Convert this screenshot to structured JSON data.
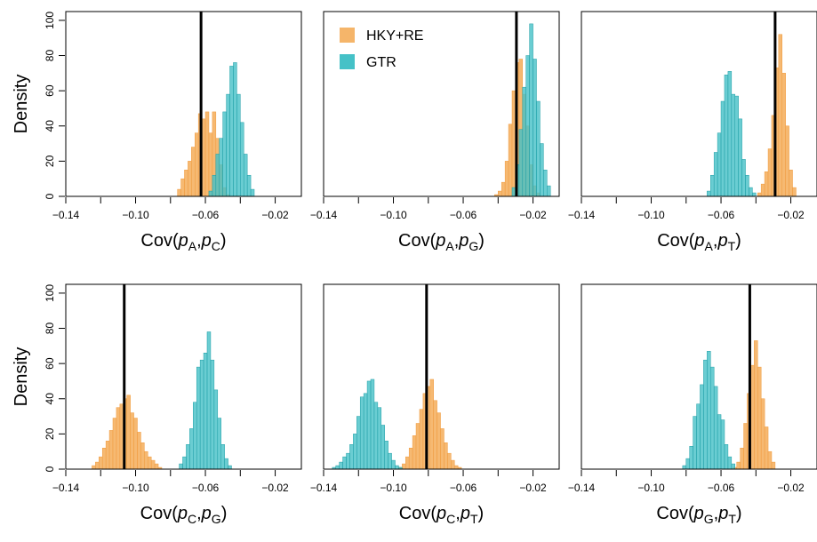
{
  "colors": {
    "hky": "#f5b56a",
    "hky_edge": "#f09a3c",
    "gtr": "#45c1c7",
    "gtr_edge": "#1f9ea6",
    "overlap": "#6f9a7c",
    "truth_line": "#000000",
    "frame": "#000000"
  },
  "legend": {
    "placement": "top-left of top-middle panel",
    "items": [
      {
        "label": "HKY+RE",
        "color_key": "hky"
      },
      {
        "label": "GTR",
        "color_key": "gtr"
      }
    ]
  },
  "shared": {
    "ylabel": "Density",
    "xlim": [
      -0.14,
      -0.005
    ],
    "ylim": [
      0,
      105
    ],
    "x_ticks": [
      "-0.14",
      "-0.10",
      "-0.06",
      "-0.02"
    ],
    "x_tick_values": [
      -0.14,
      -0.1,
      -0.06,
      -0.02
    ],
    "x_minor_tick_values": [
      -0.12,
      -0.08,
      -0.04
    ],
    "y_ticks": [
      "0",
      "20",
      "40",
      "60",
      "80",
      "100"
    ],
    "y_tick_values": [
      0,
      20,
      40,
      60,
      80,
      100
    ]
  },
  "chart_data": [
    {
      "type": "histogram",
      "xlabel": {
        "base": "Cov(",
        "v1": "p",
        "s1": "A",
        "v2": "p",
        "s2": "C"
      },
      "true_value": -0.0625,
      "bin_width": 0.002,
      "series": [
        {
          "name": "HKY+RE",
          "start": -0.076,
          "heights": [
            4,
            10,
            15,
            20,
            28,
            36,
            47,
            44,
            48,
            36,
            48,
            33,
            18,
            5,
            1
          ]
        },
        {
          "name": "GTR",
          "start": -0.058,
          "heights": [
            3,
            12,
            24,
            33,
            48,
            58,
            74,
            76,
            58,
            42,
            24,
            12,
            4
          ]
        }
      ]
    },
    {
      "type": "histogram",
      "xlabel": {
        "base": "Cov(",
        "v1": "p",
        "s1": "A",
        "v2": "p",
        "s2": "G"
      },
      "true_value": -0.0295,
      "bin_width": 0.002,
      "series": [
        {
          "name": "HKY+RE",
          "start": -0.042,
          "heights": [
            1,
            3,
            8,
            20,
            41,
            60,
            76,
            78,
            58,
            40,
            18,
            6,
            2
          ]
        },
        {
          "name": "GTR",
          "start": -0.032,
          "heights": [
            5,
            18,
            38,
            62,
            80,
            98,
            78,
            54,
            30,
            15,
            6
          ]
        }
      ]
    },
    {
      "type": "histogram",
      "xlabel": {
        "base": "Cov(",
        "v1": "p",
        "s1": "A",
        "v2": "p",
        "s2": "T"
      },
      "true_value": -0.029,
      "bin_width": 0.002,
      "series": [
        {
          "name": "HKY+RE",
          "start": -0.039,
          "heights": [
            2,
            7,
            14,
            27,
            46,
            73,
            92,
            70,
            40,
            15,
            5
          ]
        },
        {
          "name": "GTR",
          "start": -0.068,
          "heights": [
            3,
            12,
            25,
            36,
            54,
            69,
            71,
            58,
            57,
            44,
            21,
            12,
            5,
            2
          ]
        }
      ]
    },
    {
      "type": "histogram",
      "xlabel": {
        "base": "Cov(",
        "v1": "p",
        "s1": "C",
        "v2": "p",
        "s2": "G"
      },
      "true_value": -0.1065,
      "bin_width": 0.002,
      "series": [
        {
          "name": "HKY+RE",
          "start": -0.125,
          "heights": [
            2,
            4,
            7,
            12,
            16,
            22,
            29,
            35,
            37,
            40,
            42,
            32,
            29,
            21,
            15,
            10,
            7,
            5,
            3,
            1
          ]
        },
        {
          "name": "GTR",
          "start": -0.075,
          "heights": [
            3,
            7,
            14,
            23,
            38,
            58,
            62,
            66,
            78,
            62,
            45,
            29,
            14,
            6,
            2
          ]
        }
      ]
    },
    {
      "type": "histogram",
      "xlabel": {
        "base": "Cov(",
        "v1": "p",
        "s1": "C",
        "v2": "p",
        "s2": "T"
      },
      "true_value": -0.081,
      "bin_width": 0.002,
      "series": [
        {
          "name": "HKY+RE",
          "start": -0.097,
          "heights": [
            1,
            3,
            7,
            12,
            19,
            26,
            34,
            43,
            47,
            51,
            39,
            32,
            23,
            15,
            9,
            5,
            2,
            1
          ]
        },
        {
          "name": "GTR",
          "start": -0.135,
          "heights": [
            1,
            2,
            4,
            7,
            9,
            14,
            20,
            30,
            41,
            43,
            50,
            51,
            38,
            35,
            25,
            16,
            9,
            5,
            2,
            1
          ]
        }
      ]
    },
    {
      "type": "histogram",
      "xlabel": {
        "base": "Cov(",
        "v1": "p",
        "s1": "G",
        "v2": "p",
        "s2": "T"
      },
      "true_value": -0.0435,
      "bin_width": 0.002,
      "series": [
        {
          "name": "HKY+RE",
          "start": -0.053,
          "heights": [
            1,
            4,
            12,
            26,
            43,
            59,
            73,
            58,
            40,
            24,
            10,
            4
          ]
        },
        {
          "name": "GTR",
          "start": -0.082,
          "heights": [
            2,
            6,
            13,
            30,
            37,
            48,
            62,
            67,
            58,
            47,
            31,
            28,
            14,
            7,
            3
          ]
        }
      ]
    }
  ]
}
